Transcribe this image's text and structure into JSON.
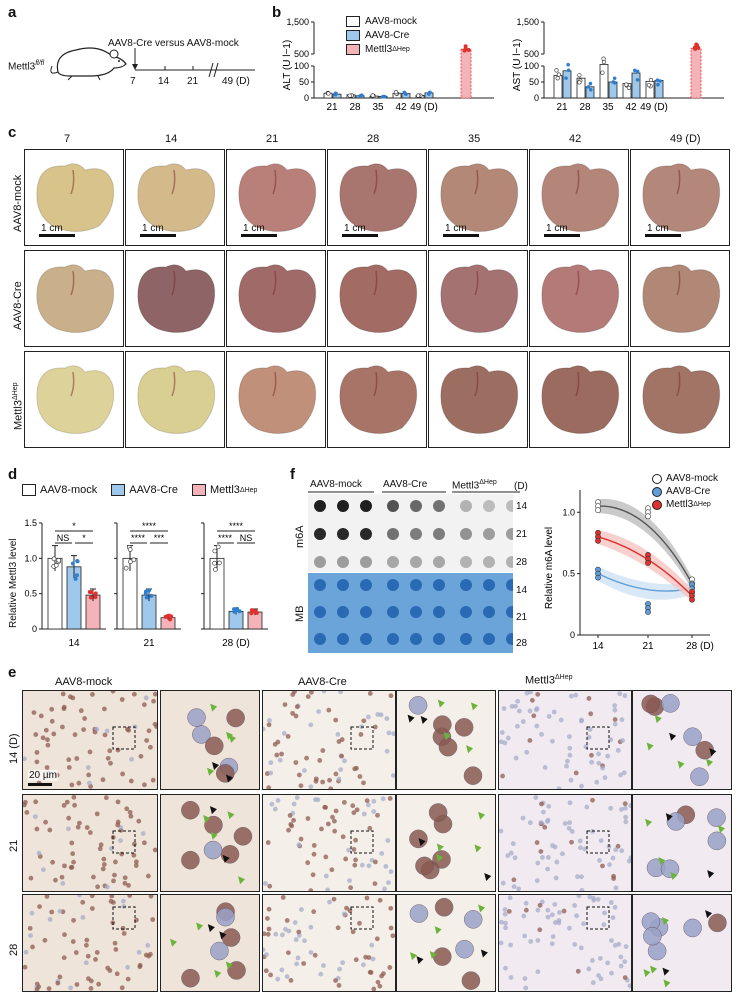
{
  "panels": {
    "a": "a",
    "b": "b",
    "c": "c",
    "d": "d",
    "e": "e",
    "f": "f"
  },
  "panel_a": {
    "genotype": "Mettl3",
    "genotype_sup": "fl/fl",
    "treatment": "AAV8-Cre versus AAV8-mock",
    "timeline_ticks": [
      "7",
      "14",
      "21",
      "49 (D)"
    ]
  },
  "panel_b": {
    "legend": [
      "AAV8-mock",
      "AAV8-Cre",
      "Mettl3"
    ],
    "legend_sup": "ΔHep",
    "colors": {
      "mock": "#ffffff",
      "cre": "#9ec8ec",
      "ko": "#f4b3b8",
      "ko_dot": "#e0312d",
      "cre_dot": "#2f7fd1"
    }
  },
  "panel_c": {
    "days": [
      "7",
      "14",
      "21",
      "28",
      "35",
      "42",
      "49 (D)"
    ],
    "rows": [
      "AAV8-mock",
      "AAV8-Cre",
      "Mettl3"
    ],
    "row_sup": "ΔHep",
    "scale_bar": "1 cm"
  },
  "panel_d": {
    "legend": [
      "AAV8-mock",
      "AAV8-Cre",
      "Mettl3"
    ],
    "legend_sup": "ΔHep",
    "ylabel": "Relative Mettl3 level",
    "days": [
      "14",
      "21",
      "28 (D)"
    ]
  },
  "panel_e": {
    "columns": [
      "AAV8-mock",
      "AAV8-Cre",
      "Mettl3"
    ],
    "col_sup": "ΔHep",
    "rows": [
      "14 (D)",
      "21",
      "28"
    ],
    "scale_bar": "20 µm"
  },
  "panel_f": {
    "groups": [
      "AAV8-mock",
      "AAV8-Cre",
      "Mettl3"
    ],
    "group_sup": "ΔHep",
    "unit": "(D)",
    "blot_rows": [
      "14",
      "21",
      "28"
    ],
    "blot_label": "m6A",
    "stain_label": "MB",
    "legend": [
      "AAV8-mock",
      "AAV8-Cre",
      "Mettl3"
    ],
    "legend_sup": "ΔHep"
  },
  "chart_data": [
    {
      "id": "b-ALT",
      "type": "bar",
      "ylabel": "ALT (U l−1)",
      "categories": [
        "21",
        "28",
        "35",
        "42",
        "49 (D)"
      ],
      "yticks": [
        "0",
        "50",
        "100",
        "500",
        "1,500"
      ],
      "series": [
        {
          "name": "AAV8-mock",
          "values": [
            15,
            10,
            6,
            15,
            8
          ]
        },
        {
          "name": "AAV8-Cre",
          "values": [
            12,
            7,
            5,
            14,
            16
          ]
        }
      ],
      "mettl3_dHep": 650
    },
    {
      "id": "b-AST",
      "type": "bar",
      "ylabel": "AST (U l−1)",
      "categories": [
        "21",
        "28",
        "35",
        "42",
        "49 (D)"
      ],
      "yticks": [
        "0",
        "50",
        "100",
        "500",
        "1,500"
      ],
      "series": [
        {
          "name": "AAV8-mock",
          "values": [
            70,
            62,
            105,
            45,
            52
          ]
        },
        {
          "name": "AAV8-Cre",
          "values": [
            85,
            35,
            50,
            78,
            55
          ]
        }
      ],
      "mettl3_dHep": 680
    },
    {
      "id": "d-14",
      "type": "bar",
      "ylabel": "Relative Mettl3 level",
      "categories": [
        "AAV8-mock",
        "AAV8-Cre",
        "Mettl3ΔHep"
      ],
      "values": [
        1.0,
        0.88,
        0.48
      ],
      "xlabel": "14",
      "ylim": [
        0,
        1.5
      ],
      "yticks": [
        "0",
        "0.5",
        "1.0",
        "1.5"
      ],
      "annotations": [
        "*",
        "NS",
        "*"
      ]
    },
    {
      "id": "d-21",
      "type": "bar",
      "categories": [
        "AAV8-mock",
        "AAV8-Cre",
        "Mettl3ΔHep"
      ],
      "values": [
        1.0,
        0.48,
        0.16
      ],
      "xlabel": "21",
      "ylim": [
        0,
        1.5
      ],
      "annotations": [
        "****",
        "****",
        "***"
      ]
    },
    {
      "id": "d-28",
      "type": "bar",
      "categories": [
        "AAV8-mock",
        "AAV8-Cre",
        "Mettl3ΔHep"
      ],
      "values": [
        1.0,
        0.25,
        0.24
      ],
      "xlabel": "28 (D)",
      "ylim": [
        0,
        1.5
      ],
      "annotations": [
        "****",
        "****",
        "NS"
      ]
    },
    {
      "id": "f-line",
      "type": "line",
      "ylabel": "Relative m6A level",
      "x": [
        "14",
        "21",
        "28 (D)"
      ],
      "ylim": [
        0,
        1.0
      ],
      "yticks": [
        "0",
        "0.5",
        "1.0"
      ],
      "series": [
        {
          "name": "AAV8-mock",
          "values": [
            1.05,
            1.0,
            0.42
          ]
        },
        {
          "name": "AAV8-Cre",
          "values": [
            0.5,
            0.22,
            0.38
          ]
        },
        {
          "name": "Mettl3ΔHep",
          "values": [
            0.8,
            0.62,
            0.32
          ]
        }
      ]
    }
  ]
}
